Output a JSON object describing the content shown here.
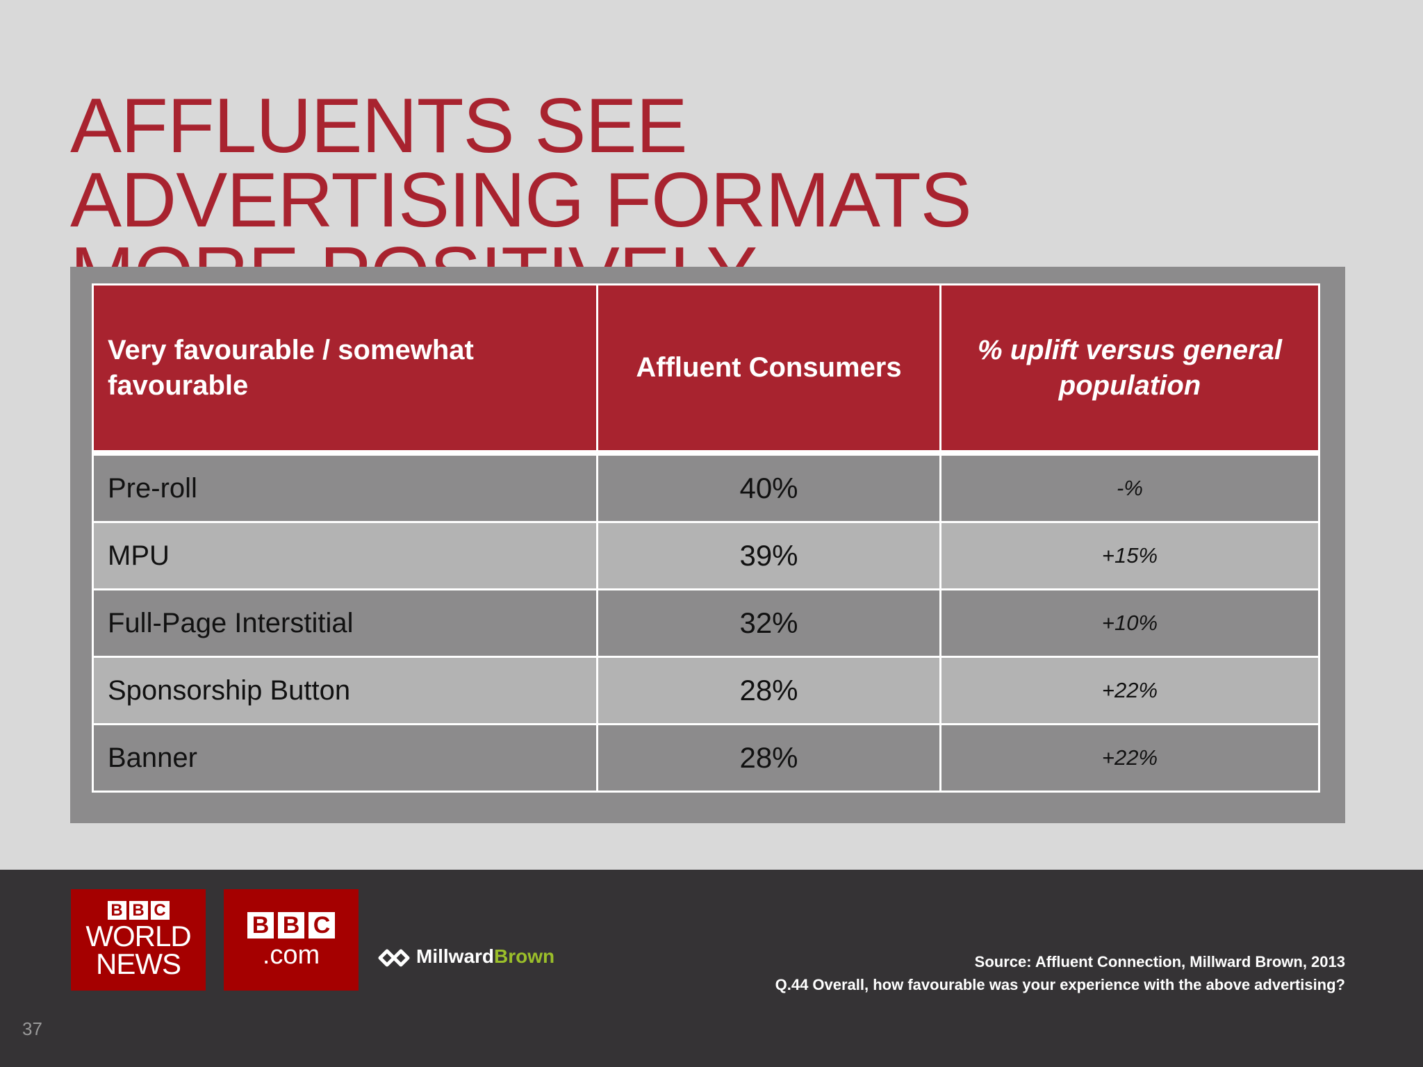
{
  "slide": {
    "title_lines": [
      "AFFLUENTS SEE",
      "ADVERTISING FORMATS",
      "MORE POSITIVELY"
    ],
    "page_number": "37"
  },
  "table": {
    "headers": [
      "Very favourable / somewhat favourable",
      "Affluent Consumers",
      "% uplift versus general population"
    ],
    "rows": [
      {
        "format": "Pre-roll",
        "affluent": "40%",
        "uplift": "-%"
      },
      {
        "format": "MPU",
        "affluent": "39%",
        "uplift": "+15%"
      },
      {
        "format": "Full-Page Interstitial",
        "affluent": "32%",
        "uplift": "+10%"
      },
      {
        "format": "Sponsorship Button",
        "affluent": "28%",
        "uplift": "+22%"
      },
      {
        "format": "Banner",
        "affluent": "28%",
        "uplift": "+22%"
      }
    ]
  },
  "footer": {
    "logo_world_news": {
      "bbc": [
        "B",
        "B",
        "C"
      ],
      "line1": "WORLD",
      "line2": "NEWS"
    },
    "logo_bbc_com": {
      "bbc": [
        "B",
        "B",
        "C"
      ],
      "suffix": ".com"
    },
    "logo_millward_brown": {
      "part1": "Millward",
      "part2": "Brown"
    },
    "source_line1": "Source:  Affluent Connection, Millward Brown, 2013",
    "source_line2": "Q.44 Overall, how favourable was your experience with the above advertising?"
  },
  "colors": {
    "accent_red": "#a8232f",
    "logo_red": "#a50000",
    "panel_gray": "#8c8b8c",
    "row_light_gray": "#b3b3b3",
    "footer_dark": "#353335",
    "background": "#d9d9d9",
    "millward_green": "#9bbf2a"
  },
  "icons": [
    "millward-brown-logo-icon"
  ]
}
